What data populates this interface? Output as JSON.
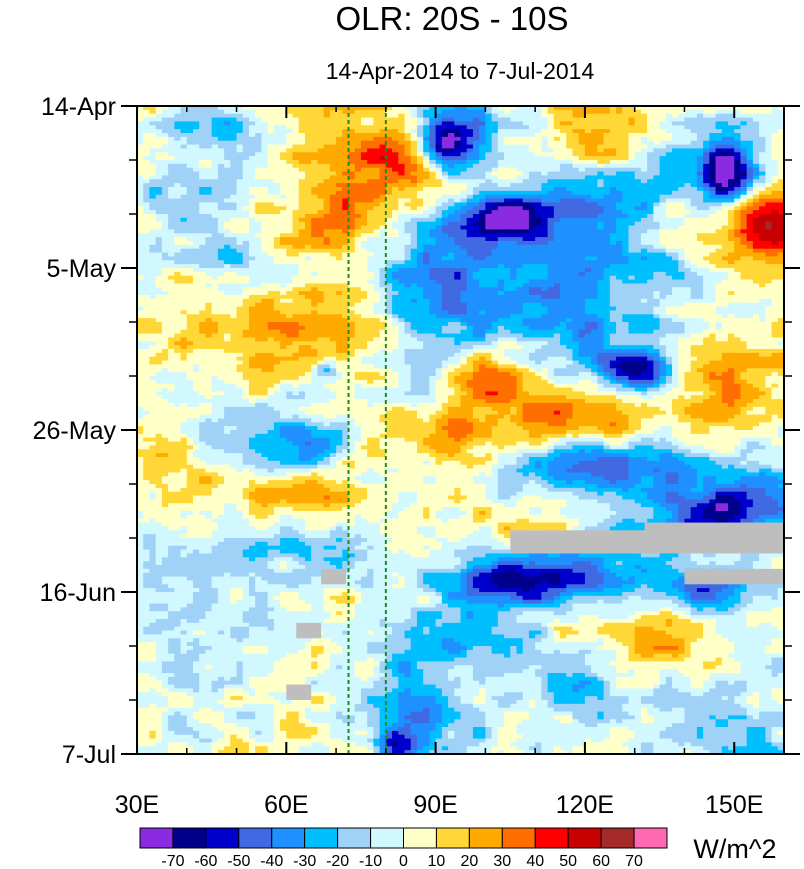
{
  "chart_data": {
    "type": "heatmap",
    "title": "OLR: 20S - 10S",
    "subtitle": "14-Apr-2014 to 7-Jul-2014",
    "units": "W/m^2",
    "x_axis": {
      "range": [
        30,
        160
      ],
      "ticks": [
        30,
        60,
        90,
        120,
        150
      ],
      "tick_labels": [
        "30E",
        "60E",
        "90E",
        "120E",
        "150E"
      ],
      "minor_ticks": [
        40,
        50,
        70,
        80,
        100,
        110,
        130,
        140,
        160
      ]
    },
    "y_axis": {
      "range_days": [
        0,
        84
      ],
      "ticks": [
        0,
        21,
        42,
        63,
        84
      ],
      "tick_labels": [
        "14-Apr",
        "5-May",
        "26-May",
        "16-Jun",
        "7-Jul"
      ],
      "minor_ticks": [
        7,
        14,
        28,
        35,
        49,
        56,
        70,
        77
      ]
    },
    "reference_lines": [
      {
        "lon": 72.5,
        "style": "dashed",
        "color": "#1f8a1f"
      },
      {
        "lon": 80,
        "style": "dashed",
        "color": "#1f8a1f"
      }
    ],
    "missing_data_color": "#bebebe",
    "missing_regions": [
      {
        "lon": [
          105,
          160
        ],
        "day": [
          55,
          58
        ]
      },
      {
        "lon": [
          132,
          160
        ],
        "day": [
          54,
          56
        ]
      },
      {
        "lon": [
          140,
          160
        ],
        "day": [
          60,
          62
        ]
      },
      {
        "lon": [
          67,
          72
        ],
        "day": [
          60,
          62
        ]
      },
      {
        "lon": [
          62,
          67
        ],
        "day": [
          67,
          69
        ]
      },
      {
        "lon": [
          60,
          65
        ],
        "day": [
          75,
          77
        ]
      }
    ],
    "levels": [
      -70,
      -60,
      -50,
      -40,
      -30,
      -20,
      -10,
      0,
      10,
      20,
      30,
      40,
      50,
      60,
      70
    ],
    "level_labels": [
      "-70",
      "-60",
      "-50",
      "-40",
      "-30",
      "-20",
      "-10",
      "0",
      "10",
      "20",
      "30",
      "40",
      "50",
      "60",
      "70"
    ],
    "colors": [
      "#8a2be2",
      "#00008b",
      "#0000cd",
      "#4169e1",
      "#1e90ff",
      "#00bfff",
      "#a0d2f8",
      "#d2f8ff",
      "#ffffc8",
      "#ffd737",
      "#ffaa00",
      "#ff6e00",
      "#ff0000",
      "#c80000",
      "#a52a2a",
      "#ff69b4"
    ],
    "features": [
      {
        "lon": 92,
        "day": 5,
        "amp": -75,
        "slon": 4,
        "sday": 2.5
      },
      {
        "lon": 97,
        "day": 4,
        "amp": -35,
        "slon": 8,
        "sday": 4
      },
      {
        "lon": 148,
        "day": 9,
        "amp": -70,
        "slon": 4,
        "sday": 2.5
      },
      {
        "lon": 146,
        "day": 8,
        "amp": -30,
        "slon": 10,
        "sday": 5
      },
      {
        "lon": 104,
        "day": 14.5,
        "amp": -55,
        "slon": 5,
        "sday": 2
      },
      {
        "lon": 110,
        "day": 16,
        "amp": -30,
        "slon": 14,
        "sday": 3.5
      },
      {
        "lon": 122,
        "day": 12,
        "amp": -25,
        "slon": 10,
        "sday": 3
      },
      {
        "lon": 126,
        "day": 21,
        "amp": -30,
        "slon": 12,
        "sday": 3
      },
      {
        "lon": 130,
        "day": 34.5,
        "amp": -60,
        "slon": 6,
        "sday": 2
      },
      {
        "lon": 118,
        "day": 30,
        "amp": -32,
        "slon": 16,
        "sday": 4
      },
      {
        "lon": 100,
        "day": 25,
        "amp": -25,
        "slon": 12,
        "sday": 4
      },
      {
        "lon": 92,
        "day": 20,
        "amp": -25,
        "slon": 8,
        "sday": 6
      },
      {
        "lon": 85,
        "day": 30,
        "amp": -20,
        "slon": 6,
        "sday": 8
      },
      {
        "lon": 128,
        "day": 46.5,
        "amp": -48,
        "slon": 12,
        "sday": 2.5
      },
      {
        "lon": 110,
        "day": 48,
        "amp": -25,
        "slon": 10,
        "sday": 3
      },
      {
        "lon": 145,
        "day": 53,
        "amp": -62,
        "slon": 8,
        "sday": 2.5
      },
      {
        "lon": 158,
        "day": 50,
        "amp": -30,
        "slon": 8,
        "sday": 4
      },
      {
        "lon": 105,
        "day": 61.5,
        "amp": -55,
        "slon": 10,
        "sday": 2.5
      },
      {
        "lon": 120,
        "day": 60,
        "amp": -30,
        "slon": 14,
        "sday": 4
      },
      {
        "lon": 145,
        "day": 63,
        "amp": -45,
        "slon": 10,
        "sday": 2
      },
      {
        "lon": 100,
        "day": 69,
        "amp": -35,
        "slon": 10,
        "sday": 3
      },
      {
        "lon": 118,
        "day": 74,
        "amp": -30,
        "slon": 10,
        "sday": 4
      },
      {
        "lon": 85,
        "day": 76,
        "amp": -30,
        "slon": 5,
        "sday": 5
      },
      {
        "lon": 82,
        "day": 83,
        "amp": -45,
        "slon": 3,
        "sday": 1.5
      },
      {
        "lon": 90,
        "day": 80,
        "amp": -25,
        "slon": 8,
        "sday": 4
      },
      {
        "lon": 150,
        "day": 80,
        "amp": -20,
        "slon": 12,
        "sday": 6
      },
      {
        "lon": 65,
        "day": 44,
        "amp": -40,
        "slon": 5,
        "sday": 2
      },
      {
        "lon": 55,
        "day": 42,
        "amp": -20,
        "slon": 10,
        "sday": 4
      },
      {
        "lon": 68,
        "day": 34,
        "amp": -30,
        "slon": 2,
        "sday": 1
      },
      {
        "lon": 45,
        "day": 3,
        "amp": -30,
        "slon": 6,
        "sday": 2
      },
      {
        "lon": 40,
        "day": 12,
        "amp": -20,
        "slon": 8,
        "sday": 4
      },
      {
        "lon": 50,
        "day": 20,
        "amp": -18,
        "slon": 8,
        "sday": 4
      },
      {
        "lon": 67,
        "day": 57,
        "amp": -30,
        "slon": 6,
        "sday": 2
      },
      {
        "lon": 50,
        "day": 58,
        "amp": -18,
        "slon": 10,
        "sday": 6
      },
      {
        "lon": 42,
        "day": 68,
        "amp": -15,
        "slon": 10,
        "sday": 8
      },
      {
        "lon": 88,
        "day": 8,
        "amp": 35,
        "slon": 10,
        "sday": 4
      },
      {
        "lon": 68,
        "day": 15,
        "amp": 22,
        "slon": 10,
        "sday": 3
      },
      {
        "lon": 125,
        "day": 3,
        "amp": 25,
        "slon": 10,
        "sday": 3
      },
      {
        "lon": 158,
        "day": 16,
        "amp": 38,
        "slon": 6,
        "sday": 3
      },
      {
        "lon": 150,
        "day": 14,
        "amp": 25,
        "slon": 12,
        "sday": 4
      },
      {
        "lon": 103,
        "day": 34,
        "amp": 30,
        "slon": 6,
        "sday": 3
      },
      {
        "lon": 120,
        "day": 40,
        "amp": 25,
        "slon": 12,
        "sday": 4
      },
      {
        "lon": 95,
        "day": 42,
        "amp": 22,
        "slon": 10,
        "sday": 4
      },
      {
        "lon": 70,
        "day": 28,
        "amp": 20,
        "slon": 14,
        "sday": 4
      },
      {
        "lon": 62,
        "day": 51,
        "amp": 22,
        "slon": 12,
        "sday": 3
      },
      {
        "lon": 40,
        "day": 50,
        "amp": 15,
        "slon": 6,
        "sday": 4
      },
      {
        "lon": 110,
        "day": 55,
        "amp": 20,
        "slon": 8,
        "sday": 4
      },
      {
        "lon": 115,
        "day": 67,
        "amp": 22,
        "slon": 10,
        "sday": 3
      },
      {
        "lon": 135,
        "day": 70,
        "amp": 20,
        "slon": 10,
        "sday": 4
      },
      {
        "lon": 150,
        "day": 36,
        "amp": 20,
        "slon": 10,
        "sday": 5
      },
      {
        "lon": 52,
        "day": 30,
        "amp": 15,
        "slon": 10,
        "sday": 5
      },
      {
        "lon": 45,
        "day": 63,
        "amp": 12,
        "slon": 8,
        "sday": 4
      },
      {
        "lon": 75,
        "day": 5,
        "amp": 15,
        "slon": 10,
        "sday": 4
      }
    ]
  }
}
